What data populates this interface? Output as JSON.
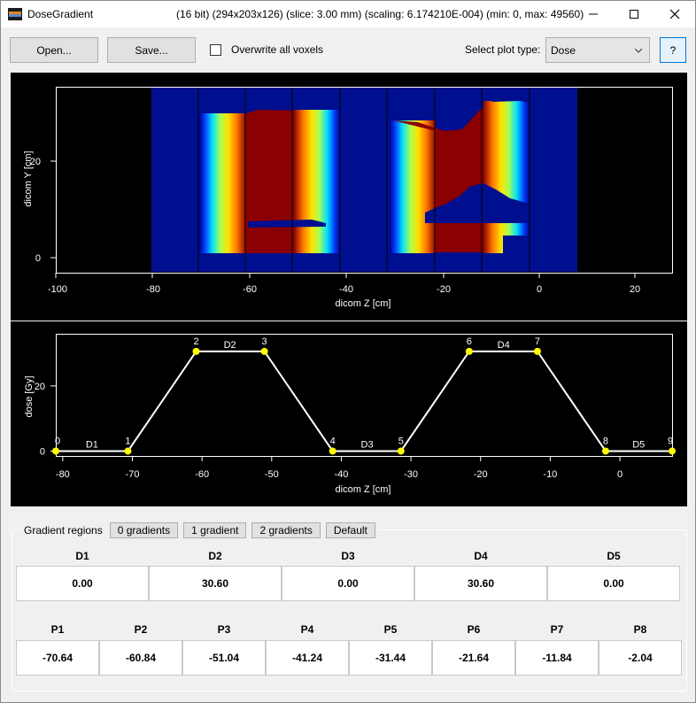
{
  "window": {
    "title": "DoseGradient",
    "info": "(16 bit) (294x203x126) (slice: 3.00 mm) (scaling: 6.174210E-004) (min: 0, max: 49560)",
    "icon": "app-icon",
    "controls": [
      "minimize-icon",
      "maximize-icon",
      "close-icon"
    ]
  },
  "toolbar": {
    "open_label": "Open...",
    "save_label": "Save...",
    "overwrite_label": "Overwrite all voxels",
    "overwrite_checked": false,
    "plot_type_label": "Select plot type:",
    "plot_type_value": "Dose",
    "help_label": "?"
  },
  "image_plot": {
    "xlabel": "dicom Z [cm]",
    "ylabel": "dicom Y [cm]",
    "x_ticks": [
      "-100",
      "-80",
      "-60",
      "-40",
      "-20",
      "0",
      "20"
    ],
    "y_ticks": [
      "20",
      "0"
    ]
  },
  "chart_data": {
    "type": "line",
    "xlabel": "dicom Z [cm]",
    "ylabel": "dose [Gy]",
    "xlim": [
      -81,
      7.5
    ],
    "ylim": [
      -1.5,
      36
    ],
    "x_ticks": [
      -80,
      -70,
      -60,
      -50,
      -40,
      -30,
      -20,
      -10,
      0
    ],
    "y_ticks": [
      0,
      20
    ],
    "points": [
      {
        "label": "0",
        "x": -81.0,
        "y": 0
      },
      {
        "label": "1",
        "x": -70.64,
        "y": 0
      },
      {
        "label": "2",
        "x": -60.84,
        "y": 30.6
      },
      {
        "label": "3",
        "x": -51.04,
        "y": 30.6
      },
      {
        "label": "4",
        "x": -41.24,
        "y": 0
      },
      {
        "label": "5",
        "x": -31.44,
        "y": 0
      },
      {
        "label": "6",
        "x": -21.64,
        "y": 30.6
      },
      {
        "label": "7",
        "x": -11.84,
        "y": 30.6
      },
      {
        "label": "8",
        "x": -2.04,
        "y": 0
      },
      {
        "label": "9",
        "x": 7.5,
        "y": 0
      }
    ],
    "region_labels": [
      {
        "label": "D1",
        "x": -75.8,
        "y": 0
      },
      {
        "label": "D2",
        "x": -56.0,
        "y": 30.6
      },
      {
        "label": "D3",
        "x": -36.3,
        "y": 0
      },
      {
        "label": "D4",
        "x": -16.7,
        "y": 30.6
      },
      {
        "label": "D5",
        "x": 2.7,
        "y": 0
      }
    ]
  },
  "gradients": {
    "title": "Gradient regions",
    "buttons": [
      "0 gradients",
      "1 gradient",
      "2 gradients",
      "Default"
    ],
    "dose_headers": [
      "D1",
      "D2",
      "D3",
      "D4",
      "D5"
    ],
    "dose_values": [
      "0.00",
      "30.60",
      "0.00",
      "30.60",
      "0.00"
    ],
    "pos_headers": [
      "P1",
      "P2",
      "P3",
      "P4",
      "P5",
      "P6",
      "P7",
      "P8"
    ],
    "pos_values": [
      "-70.64",
      "-60.84",
      "-51.04",
      "-41.24",
      "-31.44",
      "-21.64",
      "-11.84",
      "-2.04"
    ]
  }
}
